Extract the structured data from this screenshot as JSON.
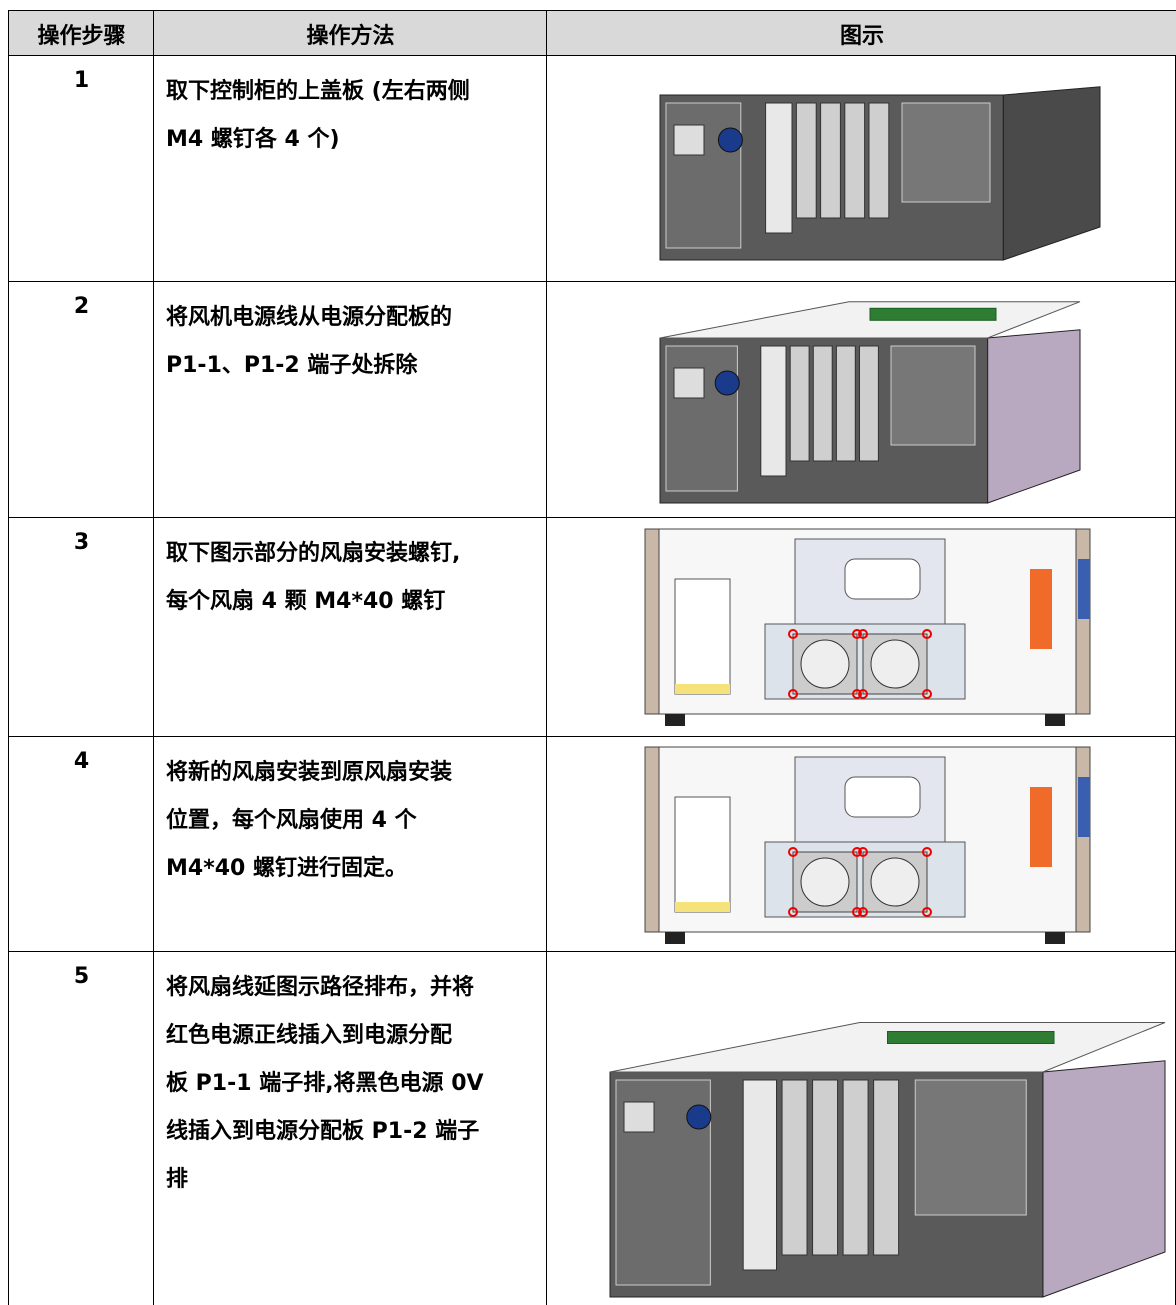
{
  "table": {
    "header": [
      "操作步骤",
      "操作方法",
      "图示"
    ],
    "rows": [
      {
        "step": "1",
        "method": [
          "取下控制柜的上盖板 (左右两侧",
          "M4 螺钉各 4 个)"
        ]
      },
      {
        "step": "2",
        "method": [
          "将风机电源线从电源分配板的",
          "P1-1、P1-2 端子处拆除"
        ]
      },
      {
        "step": "3",
        "method": [
          "取下图示部分的风扇安装螺钉,",
          "每个风扇 4 颗 M4*40 螺钉"
        ]
      },
      {
        "step": "4",
        "method": [
          "将新的风扇安装到原风扇安装",
          "位置，每个风扇使用 4 个",
          "M4*40 螺钉进行固定。"
        ]
      },
      {
        "step": "5",
        "method": [
          "将风扇线延图示路径排布，并将",
          "红色电源正线插入到电源分配",
          "板 P1-1 端子排,将黑色电源 0V",
          "线插入到电源分配板 P1-2 端子",
          "排"
        ]
      }
    ]
  }
}
